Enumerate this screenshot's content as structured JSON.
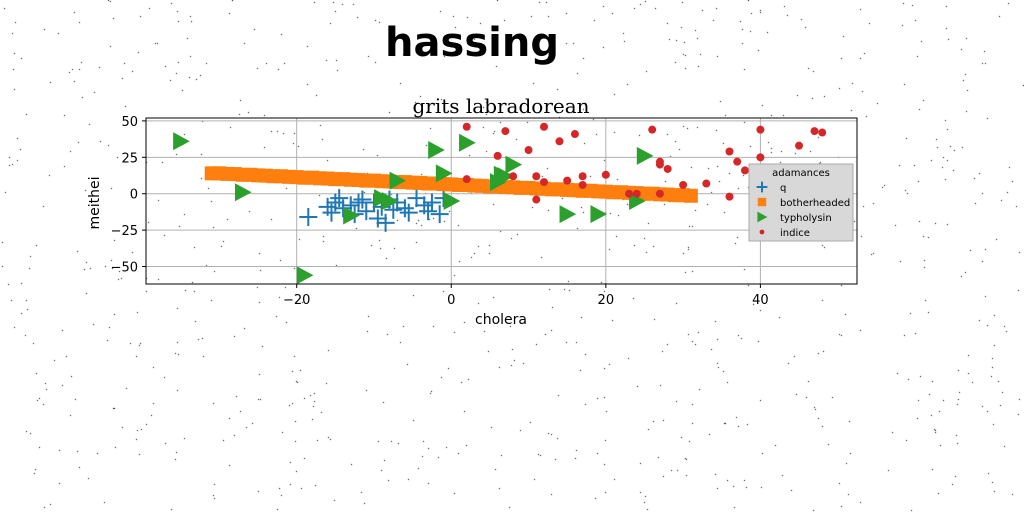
{
  "figure": {
    "suptitle": "hassing"
  },
  "colors": {
    "q": "#1f77b4",
    "botherheaded": "#ff7f0e",
    "typholysin": "#2ca02c",
    "indice": "#d62728"
  },
  "chart_data": {
    "type": "scatter",
    "title": "grits labradorean",
    "xlabel": "cholera",
    "ylabel": "meithei",
    "xlim": [
      -39.5,
      52.5
    ],
    "ylim": [
      -62,
      52
    ],
    "xticks": [
      -20,
      0,
      20,
      40
    ],
    "yticks": [
      -50,
      -25,
      0,
      25,
      50
    ],
    "grid": true,
    "legend": {
      "title": "adamances",
      "position": "right"
    },
    "series": [
      {
        "name": "q",
        "marker": "plus",
        "points": [
          [
            -18.5,
            -16
          ],
          [
            -16,
            -9
          ],
          [
            -15.5,
            -13
          ],
          [
            -15,
            -6
          ],
          [
            -14.5,
            -3
          ],
          [
            -14,
            -10
          ],
          [
            -13,
            -8
          ],
          [
            -12.5,
            -14
          ],
          [
            -12,
            -6
          ],
          [
            -11.5,
            -4
          ],
          [
            -11,
            -12
          ],
          [
            -10,
            -6
          ],
          [
            -9.5,
            -17
          ],
          [
            -9,
            -9
          ],
          [
            -8.5,
            -20
          ],
          [
            -8,
            -4
          ],
          [
            -7.5,
            -11
          ],
          [
            -7,
            -6
          ],
          [
            -6,
            -10
          ],
          [
            -5.5,
            -13
          ],
          [
            -4.5,
            -3
          ],
          [
            -3.5,
            -8
          ],
          [
            -3,
            -12
          ],
          [
            -2.5,
            -6
          ],
          [
            -1.5,
            -14
          ],
          [
            -1,
            -3
          ]
        ]
      },
      {
        "name": "botherheaded",
        "marker": "square",
        "points": [
          [
            -31,
            14
          ],
          [
            -30,
            14
          ],
          [
            -29,
            13.6
          ],
          [
            -28,
            13.5
          ],
          [
            -27,
            13
          ],
          [
            -26,
            13
          ],
          [
            -25,
            12.6
          ],
          [
            -24,
            12.4
          ],
          [
            -23,
            12
          ],
          [
            -22,
            12
          ],
          [
            -21,
            11.6
          ],
          [
            -20,
            11.4
          ],
          [
            -19,
            11
          ],
          [
            -18,
            11
          ],
          [
            -17,
            10.6
          ],
          [
            -16,
            10.4
          ],
          [
            -15,
            10
          ],
          [
            -14,
            10
          ],
          [
            -13,
            9.6
          ],
          [
            -12,
            9.4
          ],
          [
            -11,
            9
          ],
          [
            -10,
            9
          ],
          [
            -9,
            8.6
          ],
          [
            -8,
            8.4
          ],
          [
            -7,
            8
          ],
          [
            -6,
            8
          ],
          [
            -5,
            7.6
          ],
          [
            -4,
            7.4
          ],
          [
            -3,
            7
          ],
          [
            -2,
            7
          ],
          [
            -1,
            6.6
          ],
          [
            0,
            6.4
          ],
          [
            1,
            6
          ],
          [
            2,
            6
          ],
          [
            3,
            5.6
          ],
          [
            4,
            5.4
          ],
          [
            5,
            5
          ],
          [
            6,
            5
          ],
          [
            7,
            4.6
          ],
          [
            8,
            4.4
          ],
          [
            9,
            4
          ],
          [
            10,
            4
          ],
          [
            11,
            3.6
          ],
          [
            12,
            3.4
          ],
          [
            13,
            3
          ],
          [
            14,
            3
          ],
          [
            15,
            2.6
          ],
          [
            16,
            2.4
          ],
          [
            17,
            2
          ],
          [
            18,
            2
          ],
          [
            19,
            1.6
          ],
          [
            20,
            1.4
          ],
          [
            21,
            1
          ],
          [
            22,
            1
          ],
          [
            23,
            0.6
          ],
          [
            24,
            0.4
          ],
          [
            25,
            0
          ],
          [
            26,
            0
          ],
          [
            27,
            -0.4
          ],
          [
            28,
            -0.6
          ],
          [
            29,
            -1
          ],
          [
            30,
            -1
          ],
          [
            31,
            -1.4
          ]
        ]
      },
      {
        "name": "typholysin",
        "marker": "triangle-right",
        "points": [
          [
            -35,
            36
          ],
          [
            -27,
            1
          ],
          [
            -19,
            -56
          ],
          [
            -13,
            -15
          ],
          [
            -9,
            -3
          ],
          [
            -8,
            -5
          ],
          [
            -7,
            9
          ],
          [
            -2,
            30
          ],
          [
            -1,
            14
          ],
          [
            0,
            -5
          ],
          [
            2,
            35
          ],
          [
            6,
            8
          ],
          [
            6.5,
            13
          ],
          [
            7,
            12
          ],
          [
            8,
            20
          ],
          [
            15,
            -14
          ],
          [
            19,
            -14
          ],
          [
            24,
            -5
          ],
          [
            25,
            26
          ]
        ]
      },
      {
        "name": "indice",
        "marker": "circle",
        "points": [
          [
            2,
            46
          ],
          [
            2,
            10
          ],
          [
            6,
            26
          ],
          [
            7,
            43
          ],
          [
            8,
            12
          ],
          [
            10,
            30
          ],
          [
            11,
            12
          ],
          [
            11,
            -4
          ],
          [
            12,
            46
          ],
          [
            12,
            8
          ],
          [
            14,
            36
          ],
          [
            15,
            9
          ],
          [
            16,
            41
          ],
          [
            17,
            12
          ],
          [
            17,
            6
          ],
          [
            20,
            13
          ],
          [
            23,
            0
          ],
          [
            24,
            0
          ],
          [
            26,
            44
          ],
          [
            27,
            22
          ],
          [
            27,
            20
          ],
          [
            27,
            0
          ],
          [
            28,
            17
          ],
          [
            30,
            6
          ],
          [
            33,
            7
          ],
          [
            36,
            29
          ],
          [
            36,
            -2
          ],
          [
            37,
            22
          ],
          [
            38,
            16
          ],
          [
            40,
            44
          ],
          [
            40,
            25
          ],
          [
            40,
            11
          ],
          [
            41,
            12
          ],
          [
            42,
            14
          ],
          [
            44,
            6
          ],
          [
            45,
            33
          ],
          [
            45,
            14
          ],
          [
            46,
            11
          ],
          [
            47,
            43
          ],
          [
            47,
            12
          ],
          [
            48,
            42
          ]
        ]
      }
    ]
  }
}
